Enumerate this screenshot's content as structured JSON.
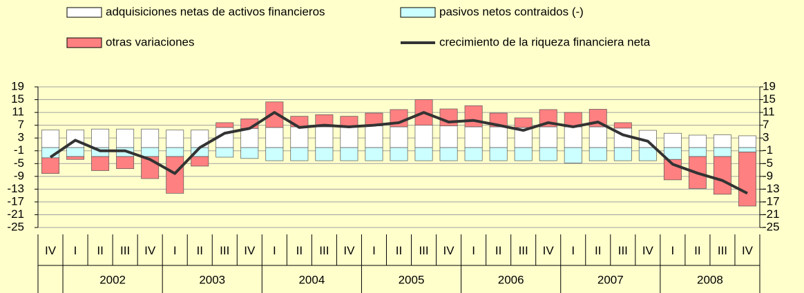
{
  "chart_data": {
    "type": "bar",
    "stacked": true,
    "categories": [
      "IV",
      "I",
      "II",
      "III",
      "IV",
      "I",
      "II",
      "III",
      "IV",
      "I",
      "II",
      "III",
      "IV",
      "I",
      "II",
      "III",
      "IV",
      "I",
      "II",
      "III",
      "IV",
      "I",
      "II",
      "III",
      "IV",
      "I",
      "II",
      "III",
      "IV"
    ],
    "years": [
      "2002",
      "2003",
      "2004",
      "2005",
      "2006",
      "2007",
      "2008"
    ],
    "series": [
      {
        "name": "adquisiciones netas de activos financieros",
        "color": "#ffffff",
        "type": "bar",
        "values": [
          5.5,
          5.5,
          5.8,
          5.8,
          5.8,
          5.5,
          5.5,
          6.3,
          6,
          6.3,
          6.5,
          6.5,
          6.5,
          6.8,
          6.5,
          7,
          6.8,
          6.5,
          6.5,
          6.3,
          6.5,
          6.5,
          6.5,
          6.1,
          5.4,
          4.5,
          3.9,
          4,
          3.7
        ]
      },
      {
        "name": "pasivos netos contraidos (-)",
        "color": "#ccffff",
        "type": "bar",
        "values": [
          -3.2,
          -2.8,
          -2.8,
          -2.8,
          -2.8,
          -2.8,
          -2.8,
          -3,
          -3.4,
          -4.1,
          -4.1,
          -4.1,
          -4.1,
          -4.1,
          -4.1,
          -4.1,
          -4.1,
          -4.1,
          -4.1,
          -4.1,
          -4.1,
          -4.8,
          -4.1,
          -4.1,
          -4.1,
          -3.7,
          -2.8,
          -2.8,
          -1.4
        ]
      },
      {
        "name": "otras variaciones",
        "color": "#ff8080",
        "type": "bar",
        "values": [
          -4.9,
          -0.9,
          -4.4,
          -3.8,
          -6.9,
          -11.5,
          -3,
          1.5,
          3,
          8,
          3.3,
          3.8,
          3.3,
          4,
          5.4,
          8,
          5.3,
          6.6,
          4.3,
          3,
          5.4,
          4.5,
          5.5,
          1.7,
          0,
          -6.4,
          -10,
          -11.8,
          -16.9
        ]
      },
      {
        "name": "crecimiento de la riqueza financiera neta",
        "color": "#333333",
        "type": "line",
        "values": [
          -3,
          2.3,
          -1,
          -1,
          -3.7,
          -8.1,
          0,
          4.5,
          6,
          11,
          6.3,
          7,
          6.5,
          7,
          7.8,
          11,
          8,
          8.5,
          7,
          5.4,
          7.8,
          6.5,
          8,
          4,
          2,
          -5.2,
          -8,
          -10.3,
          -14.3
        ]
      }
    ],
    "ylim": [
      -25,
      19
    ],
    "yticks": [
      19,
      15,
      11,
      7,
      3,
      -1,
      -5,
      -9,
      -13,
      -17,
      -21,
      -25
    ],
    "grid": true
  }
}
